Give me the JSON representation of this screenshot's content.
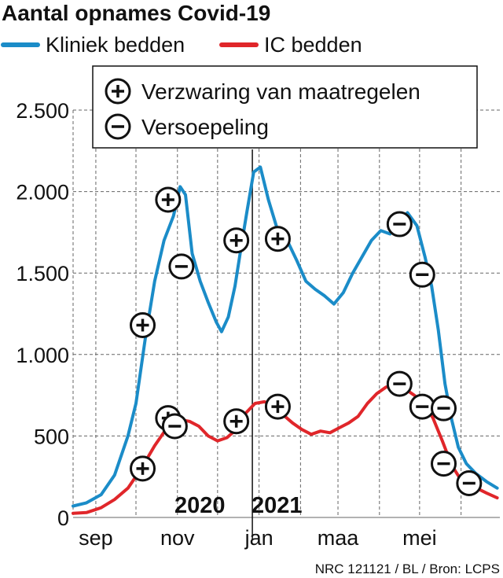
{
  "title": "Aantal opnames Covid-19",
  "source": "NRC 121121 / BL / Bron: LCPS",
  "colors": {
    "kliniek": "#1b8cc8",
    "ic": "#e0262a",
    "grid": "#666666",
    "marker": "#111111"
  },
  "marker_legend": [
    {
      "symbol": "plus",
      "label": "Verzwaring van maatregelen"
    },
    {
      "symbol": "minus",
      "label": "Versoepeling"
    }
  ],
  "year_labels": [
    "2020",
    "2021"
  ],
  "chart_data": {
    "type": "line",
    "title": "Aantal opnames Covid-19",
    "xlabel": "",
    "ylabel": "",
    "ylim": [
      0,
      2500
    ],
    "yticks": [
      0,
      500,
      1000,
      1500,
      2000,
      2500
    ],
    "ytick_labels": [
      "0",
      "500",
      "1.000",
      "1.500",
      "2.000",
      "2.500"
    ],
    "xticks": [
      {
        "label": "sep",
        "x": "2020-09-01"
      },
      {
        "label": "nov",
        "x": "2020-11-01"
      },
      {
        "label": "jan",
        "x": "2021-01-01"
      },
      {
        "label": "maa",
        "x": "2021-03-01"
      },
      {
        "label": "mei",
        "x": "2021-05-01"
      }
    ],
    "xlim": [
      "2020-08-15",
      "2021-06-30"
    ],
    "year_divider": "2020-12-27",
    "grid": true,
    "legend": "top-left",
    "series": [
      {
        "name": "Kliniek bedden",
        "color": "#1b8cc8",
        "points": [
          [
            "2020-08-15",
            70
          ],
          [
            "2020-08-25",
            90
          ],
          [
            "2020-09-05",
            140
          ],
          [
            "2020-09-15",
            260
          ],
          [
            "2020-09-25",
            500
          ],
          [
            "2020-10-01",
            700
          ],
          [
            "2020-10-08",
            1100
          ],
          [
            "2020-10-15",
            1450
          ],
          [
            "2020-10-22",
            1700
          ],
          [
            "2020-10-29",
            1850
          ],
          [
            "2020-11-03",
            2030
          ],
          [
            "2020-11-07",
            1980
          ],
          [
            "2020-11-12",
            1620
          ],
          [
            "2020-11-18",
            1450
          ],
          [
            "2020-11-24",
            1320
          ],
          [
            "2020-11-30",
            1200
          ],
          [
            "2020-12-04",
            1140
          ],
          [
            "2020-12-09",
            1230
          ],
          [
            "2020-12-14",
            1420
          ],
          [
            "2020-12-19",
            1680
          ],
          [
            "2020-12-23",
            1880
          ],
          [
            "2020-12-28",
            2120
          ],
          [
            "2021-01-02",
            2150
          ],
          [
            "2021-01-08",
            1950
          ],
          [
            "2021-01-15",
            1760
          ],
          [
            "2021-01-22",
            1700
          ],
          [
            "2021-01-29",
            1580
          ],
          [
            "2021-02-05",
            1450
          ],
          [
            "2021-02-12",
            1400
          ],
          [
            "2021-02-19",
            1360
          ],
          [
            "2021-02-26",
            1310
          ],
          [
            "2021-03-05",
            1380
          ],
          [
            "2021-03-12",
            1500
          ],
          [
            "2021-03-19",
            1600
          ],
          [
            "2021-03-26",
            1700
          ],
          [
            "2021-04-02",
            1760
          ],
          [
            "2021-04-09",
            1740
          ],
          [
            "2021-04-16",
            1820
          ],
          [
            "2021-04-22",
            1870
          ],
          [
            "2021-04-29",
            1790
          ],
          [
            "2021-05-05",
            1600
          ],
          [
            "2021-05-10",
            1420
          ],
          [
            "2021-05-15",
            1150
          ],
          [
            "2021-05-20",
            820
          ],
          [
            "2021-05-25",
            600
          ],
          [
            "2021-05-30",
            430
          ],
          [
            "2021-06-05",
            330
          ],
          [
            "2021-06-12",
            270
          ],
          [
            "2021-06-20",
            220
          ],
          [
            "2021-06-28",
            180
          ]
        ]
      },
      {
        "name": "IC bedden",
        "color": "#e0262a",
        "points": [
          [
            "2020-08-15",
            25
          ],
          [
            "2020-08-25",
            30
          ],
          [
            "2020-09-05",
            60
          ],
          [
            "2020-09-15",
            110
          ],
          [
            "2020-09-25",
            180
          ],
          [
            "2020-10-05",
            300
          ],
          [
            "2020-10-15",
            440
          ],
          [
            "2020-10-25",
            560
          ],
          [
            "2020-11-03",
            600
          ],
          [
            "2020-11-10",
            590
          ],
          [
            "2020-11-17",
            560
          ],
          [
            "2020-11-24",
            500
          ],
          [
            "2020-12-01",
            470
          ],
          [
            "2020-12-08",
            490
          ],
          [
            "2020-12-15",
            540
          ],
          [
            "2020-12-22",
            640
          ],
          [
            "2020-12-29",
            700
          ],
          [
            "2021-01-05",
            710
          ],
          [
            "2021-01-12",
            690
          ],
          [
            "2021-01-19",
            630
          ],
          [
            "2021-01-26",
            580
          ],
          [
            "2021-02-02",
            540
          ],
          [
            "2021-02-09",
            510
          ],
          [
            "2021-02-16",
            530
          ],
          [
            "2021-02-23",
            520
          ],
          [
            "2021-03-02",
            550
          ],
          [
            "2021-03-09",
            580
          ],
          [
            "2021-03-16",
            620
          ],
          [
            "2021-03-23",
            700
          ],
          [
            "2021-03-30",
            760
          ],
          [
            "2021-04-06",
            800
          ],
          [
            "2021-04-13",
            810
          ],
          [
            "2021-04-20",
            790
          ],
          [
            "2021-04-27",
            750
          ],
          [
            "2021-05-04",
            700
          ],
          [
            "2021-05-11",
            610
          ],
          [
            "2021-05-18",
            470
          ],
          [
            "2021-05-25",
            320
          ],
          [
            "2021-06-01",
            230
          ],
          [
            "2021-06-10",
            190
          ],
          [
            "2021-06-20",
            150
          ],
          [
            "2021-06-28",
            120
          ]
        ]
      }
    ],
    "markers": [
      {
        "x": "2020-10-06",
        "y": 300,
        "symbol": "plus"
      },
      {
        "x": "2020-10-06",
        "y": 1180,
        "symbol": "plus"
      },
      {
        "x": "2020-10-25",
        "y": 1950,
        "symbol": "plus"
      },
      {
        "x": "2020-10-25",
        "y": 610,
        "symbol": "plus"
      },
      {
        "x": "2020-10-30",
        "y": 560,
        "symbol": "minus"
      },
      {
        "x": "2020-11-04",
        "y": 1540,
        "symbol": "minus"
      },
      {
        "x": "2020-12-15",
        "y": 1700,
        "symbol": "plus"
      },
      {
        "x": "2020-12-15",
        "y": 590,
        "symbol": "plus"
      },
      {
        "x": "2021-01-15",
        "y": 1710,
        "symbol": "plus"
      },
      {
        "x": "2021-01-15",
        "y": 680,
        "symbol": "plus"
      },
      {
        "x": "2021-04-16",
        "y": 1800,
        "symbol": "minus"
      },
      {
        "x": "2021-04-16",
        "y": 820,
        "symbol": "minus"
      },
      {
        "x": "2021-05-03",
        "y": 1490,
        "symbol": "minus"
      },
      {
        "x": "2021-05-03",
        "y": 680,
        "symbol": "minus"
      },
      {
        "x": "2021-05-19",
        "y": 670,
        "symbol": "minus"
      },
      {
        "x": "2021-05-19",
        "y": 330,
        "symbol": "minus"
      },
      {
        "x": "2021-06-07",
        "y": 210,
        "symbol": "minus"
      }
    ]
  }
}
